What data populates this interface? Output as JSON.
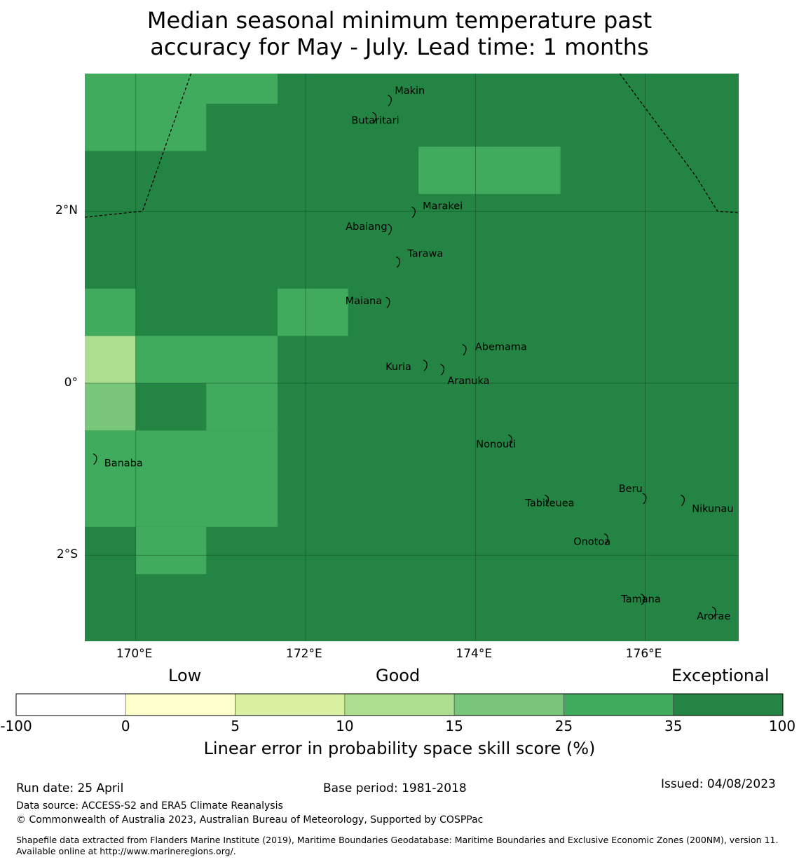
{
  "title_line1": "Median seasonal minimum temperature past",
  "title_line2": "accuracy for May - July. Lead time: 1 months",
  "map": {
    "lon_range": [
      169.4,
      177.1
    ],
    "lat_range": [
      -3.0,
      3.6
    ],
    "background_category": "35-100",
    "x_ticks": [
      {
        "lon": 170,
        "label": "170°E"
      },
      {
        "lon": 172,
        "label": "172°E"
      },
      {
        "lon": 174,
        "label": "174°E"
      },
      {
        "lon": 176,
        "label": "176°E"
      }
    ],
    "y_ticks": [
      {
        "lat": 2,
        "label": "2°N"
      },
      {
        "lat": 0,
        "label": "0°"
      },
      {
        "lat": -2,
        "label": "2°S"
      }
    ],
    "skill_cells": [
      {
        "lon": [
          169.4,
          171.67
        ],
        "lat": [
          3.25,
          3.6
        ],
        "category": "25-35"
      },
      {
        "lon": [
          169.4,
          170.83
        ],
        "lat": [
          2.7,
          3.25
        ],
        "category": "25-35"
      },
      {
        "lon": [
          173.33,
          175.0
        ],
        "lat": [
          2.2,
          2.75
        ],
        "category": "25-35"
      },
      {
        "lon": [
          169.4,
          170.0
        ],
        "lat": [
          0.55,
          1.1
        ],
        "category": "25-35"
      },
      {
        "lon": [
          171.67,
          172.5
        ],
        "lat": [
          0.55,
          1.1
        ],
        "category": "25-35"
      },
      {
        "lon": [
          169.4,
          170.0
        ],
        "lat": [
          0.0,
          0.55
        ],
        "category": "10-15"
      },
      {
        "lon": [
          170.0,
          171.67
        ],
        "lat": [
          0.0,
          0.55
        ],
        "category": "25-35"
      },
      {
        "lon": [
          169.4,
          170.0
        ],
        "lat": [
          -0.55,
          0.0
        ],
        "category": "15-25"
      },
      {
        "lon": [
          170.83,
          171.67
        ],
        "lat": [
          -0.55,
          0.0
        ],
        "category": "25-35"
      },
      {
        "lon": [
          169.4,
          171.67
        ],
        "lat": [
          -1.67,
          -0.55
        ],
        "category": "25-35"
      },
      {
        "lon": [
          170.0,
          170.83
        ],
        "lat": [
          -2.22,
          -1.67
        ],
        "category": "25-35"
      }
    ],
    "islands": [
      {
        "name": "Makin",
        "lon": 173.0,
        "lat": 3.3,
        "label": "Makin"
      },
      {
        "name": "Butaritari",
        "lon": 172.82,
        "lat": 3.1,
        "label": "Butaritari"
      },
      {
        "name": "Marakei",
        "lon": 173.28,
        "lat": 2.0,
        "label": "Marakei"
      },
      {
        "name": "Abaiang",
        "lon": 173.0,
        "lat": 1.8,
        "label": "Abaiang"
      },
      {
        "name": "Tarawa",
        "lon": 173.1,
        "lat": 1.42,
        "label": "Tarawa"
      },
      {
        "name": "Maiana",
        "lon": 172.98,
        "lat": 0.95,
        "label": "Maiana"
      },
      {
        "name": "Abemama",
        "lon": 173.88,
        "lat": 0.4,
        "label": "Abemama"
      },
      {
        "name": "Kuria",
        "lon": 173.42,
        "lat": 0.22,
        "label": "Kuria"
      },
      {
        "name": "Aranuka",
        "lon": 173.62,
        "lat": 0.17,
        "label": "Aranuka"
      },
      {
        "name": "Nonouti",
        "lon": 174.42,
        "lat": -0.65,
        "label": "Nonouti"
      },
      {
        "name": "Banaba",
        "lon": 169.53,
        "lat": -0.87,
        "label": "Banaba"
      },
      {
        "name": "Tabiteuea",
        "lon": 174.85,
        "lat": -1.35,
        "label": "Tabiteuea"
      },
      {
        "name": "Beru",
        "lon": 176.0,
        "lat": -1.33,
        "label": "Beru"
      },
      {
        "name": "Nikunau",
        "lon": 176.45,
        "lat": -1.35,
        "label": "Nikunau"
      },
      {
        "name": "Onotoa",
        "lon": 175.55,
        "lat": -1.8,
        "label": "Onotoa"
      },
      {
        "name": "Tamana",
        "lon": 175.98,
        "lat": -2.5,
        "label": "Tamana"
      },
      {
        "name": "Arorae",
        "lon": 176.82,
        "lat": -2.65,
        "label": "Arorae"
      }
    ],
    "eez_boundaries": [
      [
        [
          169.4,
          1.93
        ],
        [
          170.08,
          2.0
        ],
        [
          170.65,
          3.6
        ]
      ],
      [
        [
          175.7,
          3.6
        ],
        [
          176.6,
          2.4
        ],
        [
          176.85,
          2.0
        ],
        [
          177.1,
          1.98
        ]
      ]
    ]
  },
  "colorbar": {
    "headings": {
      "low": "Low",
      "good": "Good",
      "exceptional": "Exceptional"
    },
    "bins": [
      {
        "range": "-100-0",
        "color": "#ffffff"
      },
      {
        "range": "0-5",
        "color": "#ffffcc"
      },
      {
        "range": "5-10",
        "color": "#d9f0a3"
      },
      {
        "range": "10-15",
        "color": "#addd8e"
      },
      {
        "range": "15-25",
        "color": "#78c679"
      },
      {
        "range": "25-35",
        "color": "#41ab5d"
      },
      {
        "range": "35-100",
        "color": "#238443"
      }
    ],
    "tick_labels": [
      "-100",
      "0",
      "5",
      "10",
      "15",
      "25",
      "35",
      "100"
    ],
    "label": "Linear error in probability space skill score (%)"
  },
  "footer": {
    "run_date": "Run date: 25 April",
    "base_period": "Base period: 1981-2018",
    "issued": "Issued: 04/08/2023",
    "data_source": "Data source: ACCESS-S2 and ERA5 Climate Reanalysis",
    "copyright": "© Commonwealth of Australia 2023, Australian Bureau of Meteorology, Supported by COSPPac",
    "shapefile": "Shapefile data extracted from Flanders Marine Institute (2019), Maritime Boundaries Geodatabase: Maritime Boundaries and Exclusive Economic Zones (200NM), version 11. Available online at http://www.marineregions.org/."
  }
}
